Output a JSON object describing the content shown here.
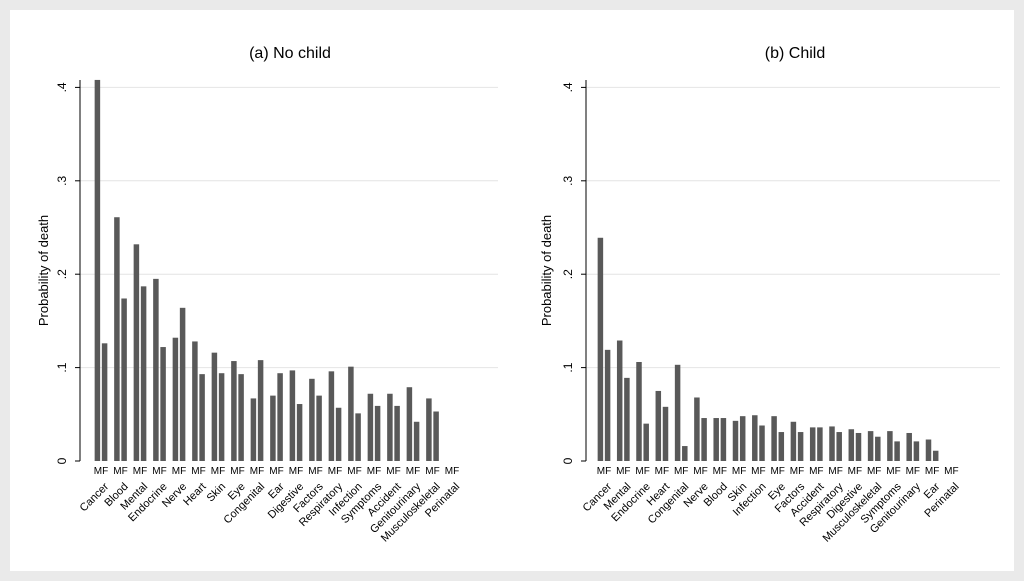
{
  "chart_data": [
    {
      "type": "bar",
      "title": "(a) No child",
      "ylabel": "Probability of death",
      "xlabel": "",
      "ylim": [
        0,
        0.42
      ],
      "yticks": [
        0,
        0.1,
        0.2,
        0.3,
        0.4
      ],
      "ytick_labels": [
        "0",
        ".1",
        ".2",
        ".3",
        ".4"
      ],
      "grid": true,
      "bar_group_label": "MF",
      "categories": [
        "Cancer",
        "Blood",
        "Mental",
        "Endocrine",
        "Nerve",
        "Heart",
        "Skin",
        "Eye",
        "Congenital",
        "Ear",
        "Digestive",
        "Factors",
        "Respiratory",
        "Infection",
        "Symptoms",
        "Accident",
        "Genitourinary",
        "Musculoskeletal",
        "Perinatal"
      ],
      "series": [
        {
          "name": "M",
          "values": [
            0.408,
            0.261,
            0.232,
            0.195,
            0.132,
            0.128,
            0.116,
            0.107,
            0.067,
            0.07,
            0.097,
            0.088,
            0.096,
            0.101,
            0.072,
            0.072,
            0.079,
            0.067,
            0.0
          ]
        },
        {
          "name": "F",
          "values": [
            0.126,
            0.174,
            0.187,
            0.122,
            0.164,
            0.093,
            0.094,
            0.093,
            0.108,
            0.094,
            0.061,
            0.07,
            0.057,
            0.051,
            0.059,
            0.059,
            0.042,
            0.053,
            0.0
          ]
        }
      ]
    },
    {
      "type": "bar",
      "title": "(b) Child",
      "ylabel": "Probability of death",
      "xlabel": "",
      "ylim": [
        0,
        0.42
      ],
      "yticks": [
        0,
        0.1,
        0.2,
        0.3,
        0.4
      ],
      "ytick_labels": [
        "0",
        ".1",
        ".2",
        ".3",
        ".4"
      ],
      "grid": true,
      "bar_group_label": "MF",
      "categories": [
        "Cancer",
        "Mental",
        "Endocrine",
        "Heart",
        "Congenital",
        "Nerve",
        "Blood",
        "Skin",
        "Infection",
        "Eye",
        "Factors",
        "Accident",
        "Respiratory",
        "Digestive",
        "Musculoskeletal",
        "Symptoms",
        "Genitourinary",
        "Ear",
        "Perinatal"
      ],
      "series": [
        {
          "name": "M",
          "values": [
            0.239,
            0.129,
            0.106,
            0.075,
            0.103,
            0.068,
            0.046,
            0.043,
            0.049,
            0.048,
            0.042,
            0.036,
            0.037,
            0.034,
            0.032,
            0.032,
            0.03,
            0.023,
            0.0
          ]
        },
        {
          "name": "F",
          "values": [
            0.119,
            0.089,
            0.04,
            0.058,
            0.016,
            0.046,
            0.046,
            0.048,
            0.038,
            0.031,
            0.031,
            0.036,
            0.031,
            0.03,
            0.026,
            0.021,
            0.021,
            0.011,
            0.0
          ]
        }
      ]
    }
  ]
}
